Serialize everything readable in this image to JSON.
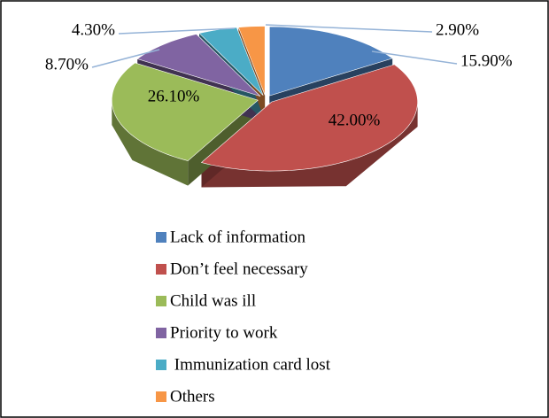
{
  "chart_data": {
    "type": "pie",
    "categories": [
      "Lack of information",
      "Don’t feel necessary",
      "Child was ill",
      "Priority to work",
      " Immunization card lost",
      "Others"
    ],
    "values": [
      15.9,
      42.0,
      26.1,
      8.7,
      4.3,
      2.9
    ],
    "value_labels": [
      "15.90%",
      "42.00%",
      "26.10%",
      "8.70%",
      "4.30%",
      "2.90%"
    ],
    "colors": [
      "#4f81bd",
      "#c0504d",
      "#9bbb59",
      "#8064a2",
      "#4bacc6",
      "#f79646"
    ],
    "legend": "bottom"
  }
}
